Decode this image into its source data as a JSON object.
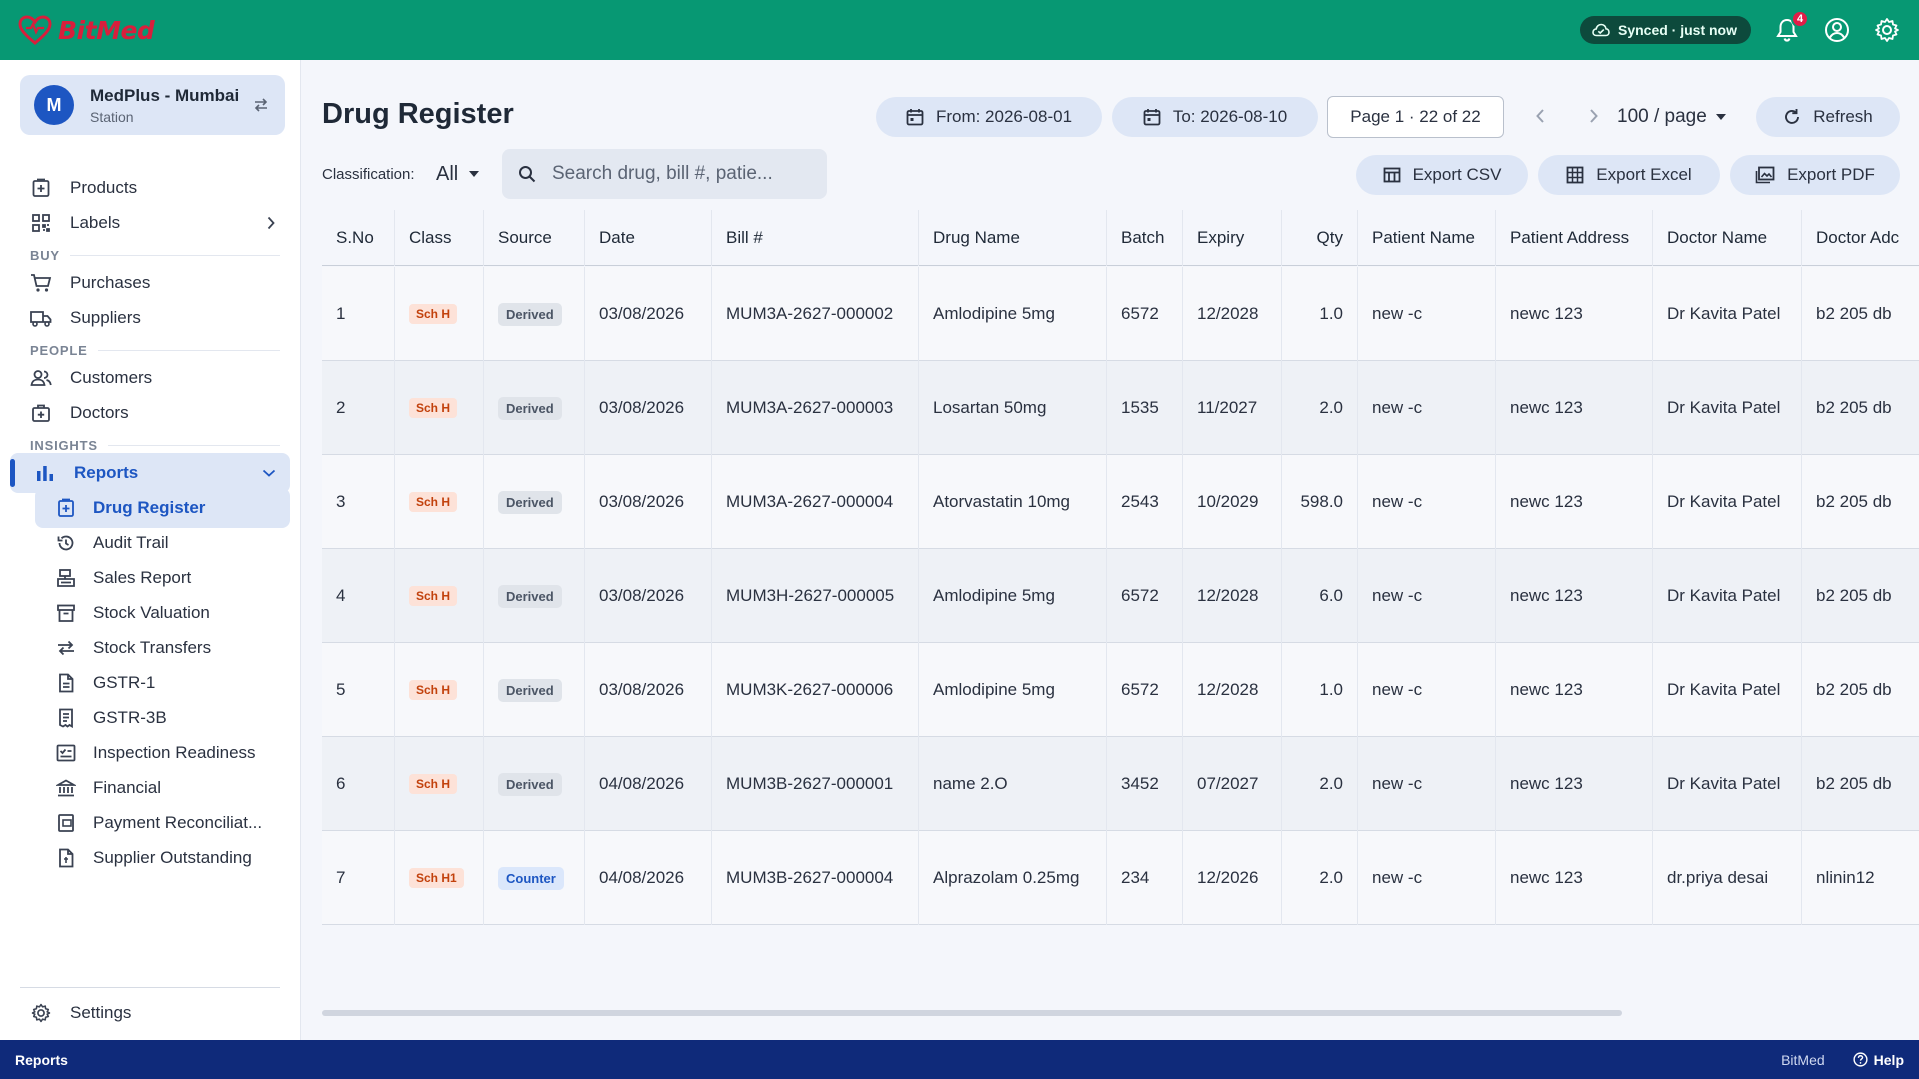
{
  "app": {
    "brand": "BitMed"
  },
  "topbar": {
    "sync_status": "Synced · just now",
    "notifications_count": "4"
  },
  "station": {
    "avatar": "M",
    "name": "MedPlus - Mumbai",
    "subtitle": "Station"
  },
  "sidebar": {
    "top_items": [
      {
        "label": "Products",
        "icon": "box-plus-icon"
      },
      {
        "label": "Labels",
        "icon": "qr-code-icon"
      }
    ],
    "sections": {
      "buy": "BUY",
      "people": "PEOPLE",
      "insights": "INSIGHTS"
    },
    "buy_items": [
      {
        "label": "Purchases",
        "icon": "cart-icon"
      },
      {
        "label": "Suppliers",
        "icon": "truck-icon"
      }
    ],
    "people_items": [
      {
        "label": "Customers",
        "icon": "people-icon"
      },
      {
        "label": "Doctors",
        "icon": "medical-bag-icon"
      }
    ],
    "reports_label": "Reports",
    "report_items": [
      {
        "label": "Drug Register",
        "icon": "drug-register-icon",
        "active": true
      },
      {
        "label": "Audit Trail",
        "icon": "history-icon"
      },
      {
        "label": "Sales Report",
        "icon": "sales-counter-icon"
      },
      {
        "label": "Stock Valuation",
        "icon": "inventory-icon"
      },
      {
        "label": "Stock Transfers",
        "icon": "swap-arrows-icon"
      },
      {
        "label": "GSTR-1",
        "icon": "document-icon"
      },
      {
        "label": "GSTR-3B",
        "icon": "receipt-icon"
      },
      {
        "label": "Inspection Readiness",
        "icon": "checklist-icon"
      },
      {
        "label": "Financial",
        "icon": "bank-icon"
      },
      {
        "label": "Payment Reconciliat...",
        "icon": "payment-icon"
      },
      {
        "label": "Supplier Outstanding",
        "icon": "outstanding-icon"
      }
    ],
    "settings_label": "Settings"
  },
  "main": {
    "title": "Drug Register",
    "date_from": "From: 2026-08-01",
    "date_to": "To: 2026-08-10",
    "page_info": "Page 1 · 22 of 22",
    "per_page": "100 / page",
    "refresh_label": "Refresh",
    "classification_label": "Classification:",
    "classification_value": "All",
    "search_placeholder": "Search drug, bill #, patie...",
    "export_csv": "Export CSV",
    "export_excel": "Export Excel",
    "export_pdf": "Export PDF"
  },
  "table": {
    "columns": [
      "S.No",
      "Class",
      "Source",
      "Date",
      "Bill #",
      "Drug Name",
      "Batch",
      "Expiry",
      "Qty",
      "Patient Name",
      "Patient Address",
      "Doctor Name",
      "Doctor Adc"
    ],
    "rows": [
      {
        "sno": "1",
        "class": "Sch H",
        "source": "Derived",
        "date": "03/08/2026",
        "bill": "MUM3A-2627-000002",
        "drug": "Amlodipine 5mg",
        "batch": "6572",
        "expiry": "12/2028",
        "qty": "1.0",
        "patient": "new -c",
        "address": "newc 123",
        "doctor": "Dr Kavita Patel",
        "doctor_addr": "b2 205 db"
      },
      {
        "sno": "2",
        "class": "Sch H",
        "source": "Derived",
        "date": "03/08/2026",
        "bill": "MUM3A-2627-000003",
        "drug": "Losartan 50mg",
        "batch": "1535",
        "expiry": "11/2027",
        "qty": "2.0",
        "patient": "new -c",
        "address": "newc 123",
        "doctor": "Dr Kavita Patel",
        "doctor_addr": "b2 205 db"
      },
      {
        "sno": "3",
        "class": "Sch H",
        "source": "Derived",
        "date": "03/08/2026",
        "bill": "MUM3A-2627-000004",
        "drug": "Atorvastatin 10mg",
        "batch": "2543",
        "expiry": "10/2029",
        "qty": "598.0",
        "patient": "new -c",
        "address": "newc 123",
        "doctor": "Dr Kavita Patel",
        "doctor_addr": "b2 205 db"
      },
      {
        "sno": "4",
        "class": "Sch H",
        "source": "Derived",
        "date": "03/08/2026",
        "bill": "MUM3H-2627-000005",
        "drug": "Amlodipine 5mg",
        "batch": "6572",
        "expiry": "12/2028",
        "qty": "6.0",
        "patient": "new -c",
        "address": "newc 123",
        "doctor": "Dr Kavita Patel",
        "doctor_addr": "b2 205 db"
      },
      {
        "sno": "5",
        "class": "Sch H",
        "source": "Derived",
        "date": "03/08/2026",
        "bill": "MUM3K-2627-000006",
        "drug": "Amlodipine 5mg",
        "batch": "6572",
        "expiry": "12/2028",
        "qty": "1.0",
        "patient": "new -c",
        "address": "newc 123",
        "doctor": "Dr Kavita Patel",
        "doctor_addr": "b2 205 db"
      },
      {
        "sno": "6",
        "class": "Sch H",
        "source": "Derived",
        "date": "04/08/2026",
        "bill": "MUM3B-2627-000001",
        "drug": "name 2.O",
        "batch": "3452",
        "expiry": "07/2027",
        "qty": "2.0",
        "patient": "new -c",
        "address": "newc 123",
        "doctor": "Dr Kavita Patel",
        "doctor_addr": "b2 205 db"
      },
      {
        "sno": "7",
        "class": "Sch H1",
        "source": "Counter",
        "date": "04/08/2026",
        "bill": "MUM3B-2627-000004",
        "drug": "Alprazolam 0.25mg",
        "batch": "234",
        "expiry": "12/2026",
        "qty": "2.0",
        "patient": "new -c",
        "address": "newc 123",
        "doctor": "dr.priya desai",
        "doctor_addr": "nlinin12"
      }
    ]
  },
  "statusbar": {
    "left": "Reports",
    "brand": "BitMed",
    "help": "Help"
  },
  "colors": {
    "topbar": "#079873",
    "accent": "#1d56c2",
    "statusbar": "#0f2a7a",
    "brand_red": "#d81f3c"
  }
}
